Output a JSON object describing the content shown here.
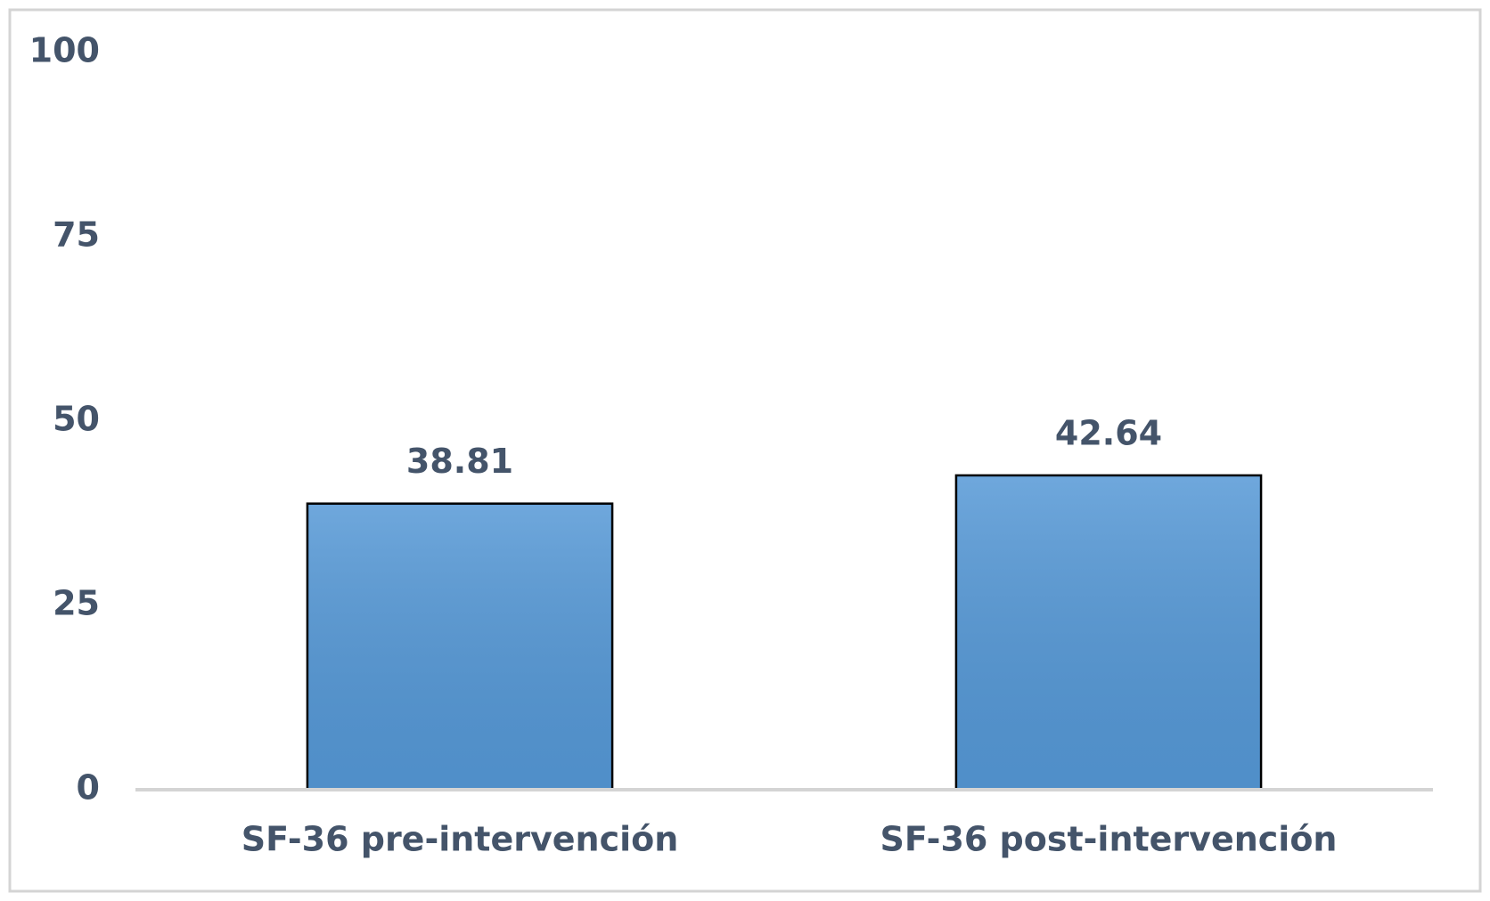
{
  "chart_data": {
    "type": "bar",
    "categories": [
      "SF-36 pre-intervención",
      "SF-36 post-intervención"
    ],
    "values": [
      38.81,
      42.64
    ],
    "color": "#5598d6",
    "ylim": [
      0,
      100
    ],
    "yticks": [
      0,
      25,
      50,
      75,
      100
    ],
    "grid": false
  }
}
